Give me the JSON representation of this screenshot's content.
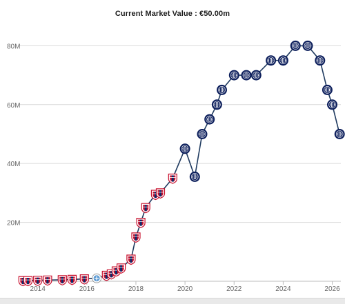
{
  "chart_data": {
    "type": "line",
    "title": "Current Market Value : €50.00m",
    "xlabel": "",
    "ylabel": "",
    "xlim": [
      2013.25,
      2026.35
    ],
    "ylim": [
      0,
      85
    ],
    "x_ticks": [
      {
        "value": 2014,
        "label": "2014"
      },
      {
        "value": 2016,
        "label": "2016"
      },
      {
        "value": 2018,
        "label": "2018"
      },
      {
        "value": 2020,
        "label": "2020"
      },
      {
        "value": 2022,
        "label": "2022"
      },
      {
        "value": 2024,
        "label": "2024"
      },
      {
        "value": 2026,
        "label": "2026"
      }
    ],
    "y_ticks": [
      {
        "value": 20,
        "label": "20M"
      },
      {
        "value": 40,
        "label": "40M"
      },
      {
        "value": 60,
        "label": "60M"
      },
      {
        "value": 80,
        "label": "80M"
      }
    ],
    "grid": "horizontal",
    "line_color": "#1f3a5f",
    "series": [
      {
        "points": [
          {
            "x": 2013.4,
            "y": 0.2,
            "club": "red"
          },
          {
            "x": 2013.6,
            "y": 0.2,
            "club": "red"
          },
          {
            "x": 2014.0,
            "y": 0.3,
            "club": "red"
          },
          {
            "x": 2014.4,
            "y": 0.4,
            "club": "red"
          },
          {
            "x": 2015.0,
            "y": 0.5,
            "club": "red"
          },
          {
            "x": 2015.4,
            "y": 0.6,
            "club": "red"
          },
          {
            "x": 2015.9,
            "y": 0.8,
            "club": "red"
          },
          {
            "x": 2016.4,
            "y": 1.0,
            "club": "blue"
          },
          {
            "x": 2016.8,
            "y": 2.0,
            "club": "red"
          },
          {
            "x": 2017.0,
            "y": 2.5,
            "club": "red"
          },
          {
            "x": 2017.2,
            "y": 3.5,
            "club": "red"
          },
          {
            "x": 2017.4,
            "y": 4.5,
            "club": "red"
          },
          {
            "x": 2017.8,
            "y": 7.5,
            "club": "red"
          },
          {
            "x": 2018.0,
            "y": 15.0,
            "club": "red"
          },
          {
            "x": 2018.2,
            "y": 20.0,
            "club": "red"
          },
          {
            "x": 2018.4,
            "y": 25.0,
            "club": "red"
          },
          {
            "x": 2018.8,
            "y": 29.5,
            "club": "red"
          },
          {
            "x": 2019.0,
            "y": 30.0,
            "club": "red"
          },
          {
            "x": 2019.5,
            "y": 35.0,
            "club": "red"
          },
          {
            "x": 2020.0,
            "y": 45.0,
            "club": "inter"
          },
          {
            "x": 2020.4,
            "y": 35.5,
            "club": "inter"
          },
          {
            "x": 2020.7,
            "y": 50.0,
            "club": "inter"
          },
          {
            "x": 2021.0,
            "y": 55.0,
            "club": "inter"
          },
          {
            "x": 2021.3,
            "y": 60.0,
            "club": "inter"
          },
          {
            "x": 2021.5,
            "y": 65.0,
            "club": "inter"
          },
          {
            "x": 2022.0,
            "y": 70.0,
            "club": "inter"
          },
          {
            "x": 2022.5,
            "y": 70.0,
            "club": "inter"
          },
          {
            "x": 2022.9,
            "y": 70.0,
            "club": "inter"
          },
          {
            "x": 2023.5,
            "y": 75.0,
            "club": "inter"
          },
          {
            "x": 2024.0,
            "y": 75.0,
            "club": "inter"
          },
          {
            "x": 2024.5,
            "y": 80.0,
            "club": "inter"
          },
          {
            "x": 2025.0,
            "y": 80.0,
            "club": "inter"
          },
          {
            "x": 2025.5,
            "y": 75.0,
            "club": "inter"
          },
          {
            "x": 2025.8,
            "y": 65.0,
            "club": "inter"
          },
          {
            "x": 2026.0,
            "y": 60.0,
            "club": "inter"
          },
          {
            "x": 2026.3,
            "y": 50.0,
            "club": "inter"
          }
        ]
      }
    ],
    "colors": {
      "red_crest": "#c8102e",
      "red_crest_inner": "#0d2b6b",
      "blue_crest": "#5d9bd3",
      "inter_ring": "#0d1f5c",
      "inter_fill": "#ffffff",
      "grid": "#d9d9d9",
      "axis": "#bcbcbc"
    },
    "marker_icons": {
      "red": "red-shield-crest-icon",
      "blue": "light-blue-crest-icon",
      "inter": "inter-roundel-icon"
    }
  }
}
